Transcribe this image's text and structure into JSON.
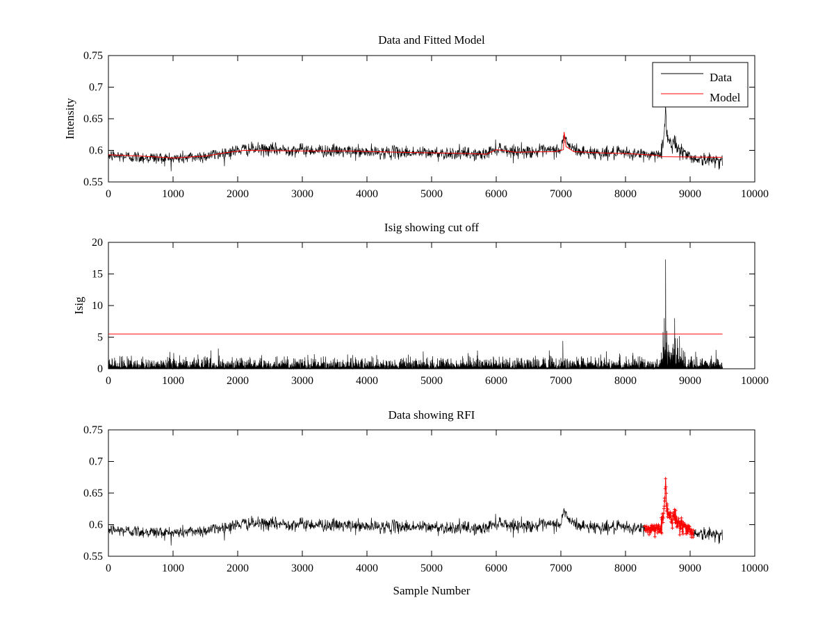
{
  "colors": {
    "data": "#000000",
    "model": "#ff0000",
    "rfi": "#ff0000",
    "cutoff": "#ff0000",
    "axes": "#000000"
  },
  "chart_data": [
    {
      "id": "top",
      "type": "line",
      "title": "Data and Fitted Model",
      "xlabel": "",
      "ylabel": "Intensity",
      "xlim": [
        0,
        10000
      ],
      "ylim": [
        0.55,
        0.75
      ],
      "xticks": [
        "0",
        "1000",
        "2000",
        "3000",
        "4000",
        "5000",
        "6000",
        "7000",
        "8000",
        "9000",
        "10000"
      ],
      "yticks": [
        "0.55",
        "0.6",
        "0.65",
        "0.7",
        "0.75"
      ],
      "legend": {
        "placement": "top-right",
        "entries": [
          "Data",
          "Model"
        ]
      },
      "series": [
        {
          "name": "Data",
          "noise": 0.005,
          "baseline": [
            [
              0,
              0.592
            ],
            [
              500,
              0.589
            ],
            [
              1000,
              0.587
            ],
            [
              1500,
              0.591
            ],
            [
              1800,
              0.596
            ],
            [
              2100,
              0.602
            ],
            [
              2500,
              0.601
            ],
            [
              3000,
              0.601
            ],
            [
              3500,
              0.599
            ],
            [
              4000,
              0.597
            ],
            [
              4500,
              0.597
            ],
            [
              5000,
              0.596
            ],
            [
              5500,
              0.595
            ],
            [
              5800,
              0.593
            ],
            [
              5950,
              0.601
            ],
            [
              6050,
              0.604
            ],
            [
              6200,
              0.599
            ],
            [
              6600,
              0.598
            ],
            [
              7000,
              0.601
            ],
            [
              7050,
              0.622
            ],
            [
              7150,
              0.604
            ],
            [
              7300,
              0.598
            ],
            [
              7600,
              0.596
            ],
            [
              8000,
              0.595
            ],
            [
              8400,
              0.593
            ],
            [
              8550,
              0.596
            ],
            [
              8600,
              0.62
            ],
            [
              8620,
              0.665
            ],
            [
              8640,
              0.628
            ],
            [
              8680,
              0.618
            ],
            [
              8720,
              0.606
            ],
            [
              8760,
              0.615
            ],
            [
              8800,
              0.605
            ],
            [
              8850,
              0.602
            ],
            [
              9000,
              0.589
            ],
            [
              9200,
              0.585
            ],
            [
              9500,
              0.585
            ]
          ]
        },
        {
          "name": "Model",
          "values": [
            [
              0,
              0.593
            ],
            [
              500,
              0.591
            ],
            [
              1000,
              0.588
            ],
            [
              1500,
              0.591
            ],
            [
              1800,
              0.596
            ],
            [
              2100,
              0.6
            ],
            [
              3000,
              0.599
            ],
            [
              3700,
              0.599
            ],
            [
              4500,
              0.597
            ],
            [
              5500,
              0.595
            ],
            [
              5850,
              0.594
            ],
            [
              6000,
              0.601
            ],
            [
              6100,
              0.6
            ],
            [
              6300,
              0.597
            ],
            [
              6900,
              0.598
            ],
            [
              7000,
              0.6
            ],
            [
              7040,
              0.601
            ],
            [
              7050,
              0.629
            ],
            [
              7080,
              0.606
            ],
            [
              7200,
              0.598
            ],
            [
              7600,
              0.596
            ],
            [
              8000,
              0.595
            ],
            [
              8500,
              0.592
            ],
            [
              8550,
              0.59
            ],
            [
              9500,
              0.589
            ]
          ]
        }
      ]
    },
    {
      "id": "middle",
      "type": "line",
      "title": "Isig showing cut off",
      "xlabel": "",
      "ylabel": "Isig",
      "xlim": [
        0,
        10000
      ],
      "ylim": [
        0,
        20
      ],
      "xticks": [
        "0",
        "1000",
        "2000",
        "3000",
        "4000",
        "5000",
        "6000",
        "7000",
        "8000",
        "9000",
        "10000"
      ],
      "yticks": [
        "0",
        "5",
        "10",
        "15",
        "20"
      ],
      "series": [
        {
          "noise_scale": 0.9,
          "spikes": [
            [
              1700,
              3.2
            ],
            [
              7030,
              4.4
            ],
            [
              8580,
              5.8
            ],
            [
              8600,
              8.0
            ],
            [
              8620,
              17.3
            ],
            [
              8640,
              6.0
            ],
            [
              8700,
              2.6
            ],
            [
              8760,
              8.0
            ],
            [
              8800,
              4.8
            ],
            [
              9400,
              3.0
            ]
          ]
        },
        {
          "name": "cut off",
          "values": [
            [
              0,
              5.5
            ],
            [
              9500,
              5.5
            ]
          ]
        }
      ]
    },
    {
      "id": "bottom",
      "type": "line",
      "title": "Data showing RFI",
      "xlabel": "Sample Number",
      "ylabel": "",
      "xlim": [
        0,
        10000
      ],
      "ylim": [
        0.55,
        0.75
      ],
      "xticks": [
        "0",
        "1000",
        "2000",
        "3000",
        "4000",
        "5000",
        "6000",
        "7000",
        "8000",
        "9000",
        "10000"
      ],
      "yticks": [
        "0.55",
        "0.6",
        "0.65",
        "0.7",
        "0.75"
      ],
      "series": [
        {
          "same_as": "top.Data"
        },
        {
          "rfi_range": [
            8300,
            9050
          ],
          "marker": "+"
        }
      ]
    }
  ]
}
